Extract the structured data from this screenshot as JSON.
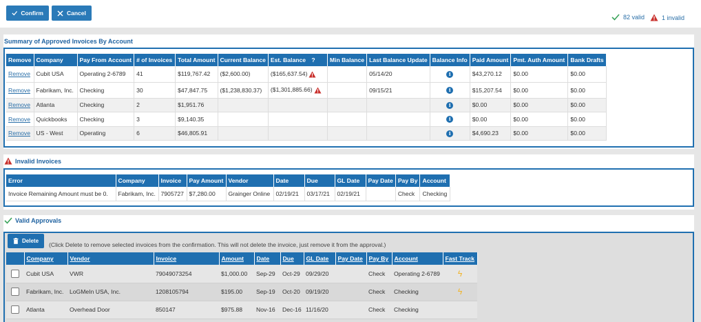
{
  "toolbar": {
    "confirm_label": "Confirm",
    "cancel_label": "Cancel"
  },
  "status": {
    "valid_text": "82 valid",
    "invalid_text": "1 invalid"
  },
  "summary": {
    "title": "Summary of Approved Invoices By Account",
    "columns": [
      "Remove",
      "Company",
      "Pay From Account",
      "# of Invoices",
      "Total Amount",
      "Current Balance",
      "Est. Balance",
      "?",
      "Min Balance",
      "Last Balance Update",
      "Balance Info",
      "Paid Amount",
      "Pmt. Auth Amount",
      "Bank Drafts"
    ],
    "rows": [
      {
        "remove": "Remove",
        "company": "Cubit USA",
        "account": "Operating 2-6789",
        "count": "41",
        "total": "$119,767.42",
        "current": "($2,600.00)",
        "est": "($165,637.54)",
        "min": "",
        "last": "05/14/20",
        "paid": "$43,270.12",
        "auth": "$0.00",
        "drafts": "$0.00"
      },
      {
        "remove": "Remove",
        "company": "Fabrikam, Inc.",
        "account": "Checking",
        "count": "30",
        "total": "$47,847.75",
        "current": "($1,238,830.37)",
        "est": "($1,301,885.66)",
        "min": "",
        "last": "09/15/21",
        "paid": "$15,207.54",
        "auth": "$0.00",
        "drafts": "$0.00"
      },
      {
        "remove": "Remove",
        "company": "Atlanta",
        "account": "Checking",
        "count": "2",
        "total": "$1,951.76",
        "current": "",
        "est": "",
        "min": "",
        "last": "",
        "paid": "$0.00",
        "auth": "$0.00",
        "drafts": "$0.00"
      },
      {
        "remove": "Remove",
        "company": "Quickbooks",
        "account": "Checking",
        "count": "3",
        "total": "$9,140.35",
        "current": "",
        "est": "",
        "min": "",
        "last": "",
        "paid": "$0.00",
        "auth": "$0.00",
        "drafts": "$0.00"
      },
      {
        "remove": "Remove",
        "company": "US - West",
        "account": "Operating",
        "count": "6",
        "total": "$46,805.91",
        "current": "",
        "est": "",
        "min": "",
        "last": "",
        "paid": "$4,690.23",
        "auth": "$0.00",
        "drafts": "$0.00"
      }
    ]
  },
  "invalid": {
    "title": "Invalid Invoices",
    "columns": [
      "Error",
      "Company",
      "Invoice",
      "Pay Amount",
      "Vendor",
      "Date",
      "Due",
      "GL Date",
      "Pay Date",
      "Pay By",
      "Account"
    ],
    "rows": [
      {
        "error": "Invoice Remaining Amount must be 0.",
        "company": "Fabrikam, Inc.",
        "invoice": "7905727",
        "amount": "$7,280.00",
        "vendor": "Grainger Online",
        "date": "02/19/21",
        "due": "03/17/21",
        "gl": "02/19/21",
        "paydate": "",
        "payby": "Check",
        "account": "Checking"
      }
    ]
  },
  "valid": {
    "title": "Valid Approvals",
    "delete_label": "Delete",
    "hint": "(Click Delete to remove selected invoices from the confirmation. This will not delete the invoice, just remove it from the approval.)",
    "columns": [
      "Company",
      "Vendor",
      "Invoice",
      "Amount",
      "Date",
      "Due",
      "GL Date",
      "Pay Date",
      "Pay By",
      "Account",
      "Fast Track"
    ],
    "rows": [
      {
        "company": "Cubit USA",
        "vendor": "VWR",
        "invoice": "79049073254",
        "amount": "$1,000.00",
        "date": "Sep-29",
        "due": "Oct-29",
        "gl": "09/29/20",
        "paydate": "",
        "payby": "Check",
        "account": "Operating 2-6789",
        "fast": true
      },
      {
        "company": "Fabrikam, Inc.",
        "vendor": "LoGMeIn USA, Inc.",
        "invoice": "1208105794",
        "amount": "$195.00",
        "date": "Sep-19",
        "due": "Oct-20",
        "gl": "09/19/20",
        "paydate": "",
        "payby": "Check",
        "account": "Checking",
        "fast": true
      },
      {
        "company": "Atlanta",
        "vendor": "Overhead Door",
        "invoice": "850147",
        "amount": "$975.88",
        "date": "Nov-16",
        "due": "Dec-16",
        "gl": "11/16/20",
        "paydate": "",
        "payby": "Check",
        "account": "Checking",
        "fast": false
      }
    ]
  }
}
